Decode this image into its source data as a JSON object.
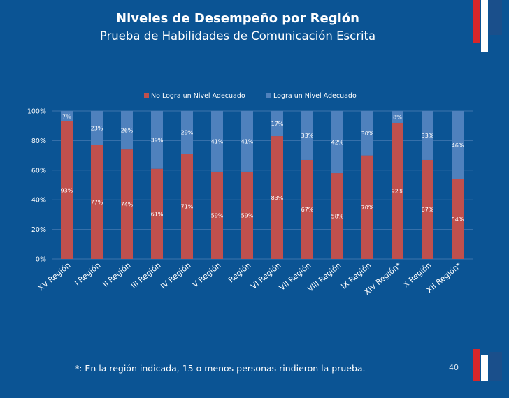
{
  "slide": {
    "title": "Niveles de Desempeño por Región",
    "subtitle": "Prueba de Habilidades de Comunicación Escrita",
    "footnote": "*: En la región indicada, 15 o menos personas rindieron la prueba.",
    "page_number": "40"
  },
  "colors": {
    "background": "#0b5494",
    "series_no_logra": "#c0504d",
    "series_logra": "#4f81bd",
    "stripe_red": "#d7262b",
    "stripe_blue": "#1a4f8b"
  },
  "chart_data": {
    "type": "bar",
    "stacked": "100%",
    "categories": [
      "XV Región",
      "I Región",
      "II Región",
      "III Región",
      "IV Región",
      "V Región",
      "Región",
      "VI Región",
      "VII Región",
      "VIII Región",
      "IX Región",
      "XIV Región*",
      "X Región",
      "XII Región*"
    ],
    "series": [
      {
        "name": "No Logra un Nivel Adecuado",
        "values": [
          93,
          77,
          74,
          61,
          71,
          59,
          59,
          83,
          67,
          58,
          70,
          92,
          67,
          54
        ]
      },
      {
        "name": "Logra un Nivel Adecuado",
        "values": [
          7,
          23,
          26,
          39,
          29,
          41,
          41,
          17,
          33,
          42,
          30,
          8,
          33,
          46
        ]
      }
    ],
    "ylim": [
      0,
      100
    ],
    "yticks": [
      "0%",
      "20%",
      "40%",
      "60%",
      "80%",
      "100%"
    ],
    "legend_position": "top",
    "grid": true
  }
}
